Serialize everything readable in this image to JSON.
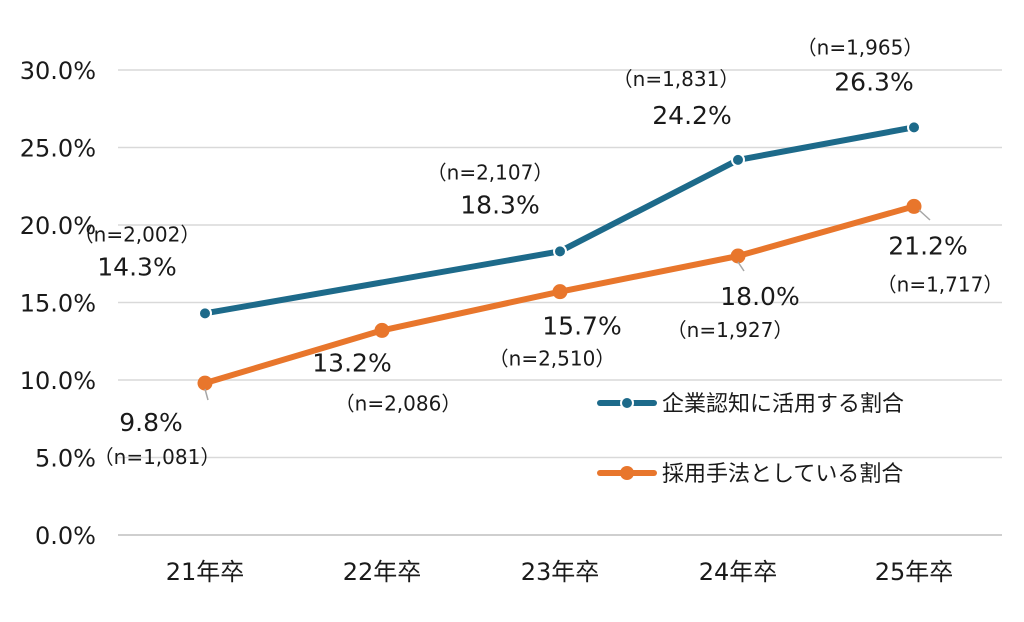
{
  "chart_data": {
    "type": "line",
    "categories": [
      "21年卒",
      "22年卒",
      "23年卒",
      "24年卒",
      "25年卒"
    ],
    "ylim": [
      0,
      30
    ],
    "yticks": [
      "0.0%",
      "5.0%",
      "10.0%",
      "15.0%",
      "20.0%",
      "25.0%",
      "30.0%"
    ],
    "grid": true,
    "legend_position": "right",
    "series": [
      {
        "name": "企業認知に活用する割合",
        "color": "#1d6a8a",
        "values": [
          14.3,
          null,
          18.3,
          24.2,
          26.3
        ],
        "value_labels": [
          "14.3%",
          "",
          "18.3%",
          "24.2%",
          "26.3%"
        ],
        "n_labels": [
          "（n=2,002）",
          "",
          "（n=2,107）",
          "（n=1,831）",
          "（n=1,965）"
        ]
      },
      {
        "name": "採用手法としている割合",
        "color": "#e8762c",
        "values": [
          9.8,
          13.2,
          15.7,
          18.0,
          21.2
        ],
        "value_labels": [
          "9.8%",
          "13.2%",
          "15.7%",
          "18.0%",
          "21.2%"
        ],
        "n_labels": [
          "（n=1,081）",
          "（n=2,086）",
          "（n=2,510）",
          "（n=1,927）",
          "（n=1,717）"
        ]
      }
    ]
  }
}
